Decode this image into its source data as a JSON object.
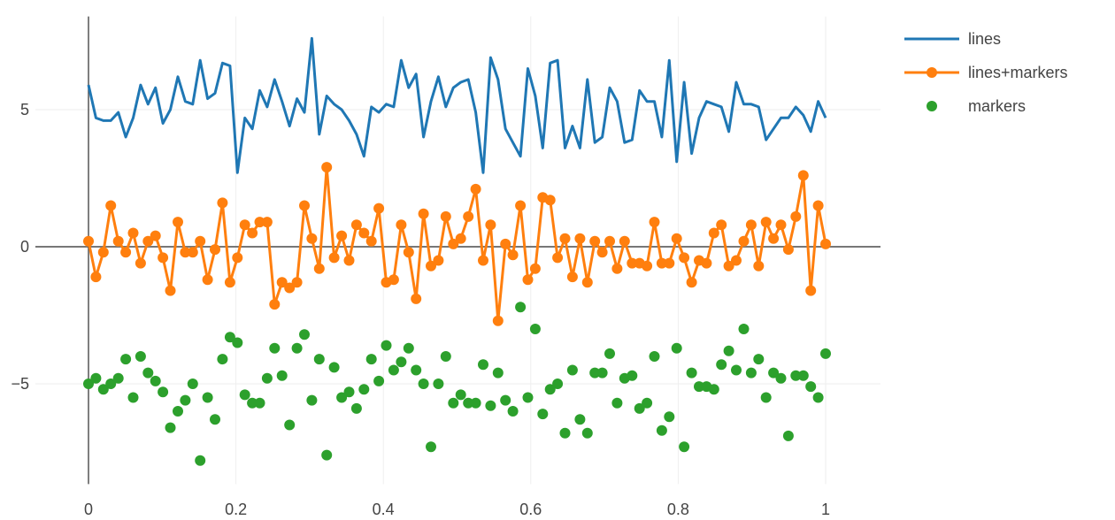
{
  "chart_data": {
    "type": "scatter",
    "title": "",
    "xlabel": "",
    "ylabel": "",
    "xlim": [
      0,
      1
    ],
    "ylim": [
      -8.4,
      8.4
    ],
    "grid": true,
    "legend_position": "top-right",
    "x_ticks": [
      0,
      0.2,
      0.4,
      0.6,
      0.8,
      1
    ],
    "x_tick_labels": [
      "0",
      "0.2",
      "0.4",
      "0.6",
      "0.8",
      "1"
    ],
    "y_ticks": [
      -5,
      0,
      5
    ],
    "y_tick_labels": [
      "−5",
      "0",
      "5"
    ],
    "x": [
      0,
      0.0101,
      0.0202,
      0.0303,
      0.0404,
      0.0505,
      0.0606,
      0.0707,
      0.0808,
      0.0909,
      0.101,
      0.1111,
      0.1212,
      0.1313,
      0.1414,
      0.1515,
      0.1616,
      0.1717,
      0.1818,
      0.1919,
      0.202,
      0.2121,
      0.2222,
      0.2323,
      0.2424,
      0.2525,
      0.2626,
      0.2727,
      0.2828,
      0.2929,
      0.303,
      0.3131,
      0.3232,
      0.3333,
      0.3434,
      0.3535,
      0.3636,
      0.3737,
      0.3838,
      0.3939,
      0.404,
      0.4141,
      0.4242,
      0.4343,
      0.4444,
      0.4545,
      0.4646,
      0.4747,
      0.4848,
      0.4949,
      0.5051,
      0.5152,
      0.5253,
      0.5354,
      0.5455,
      0.5556,
      0.5657,
      0.5758,
      0.5859,
      0.596,
      0.6061,
      0.6162,
      0.6263,
      0.6364,
      0.6465,
      0.6566,
      0.6667,
      0.6768,
      0.6869,
      0.697,
      0.7071,
      0.7172,
      0.7273,
      0.7374,
      0.7475,
      0.7576,
      0.7677,
      0.7778,
      0.7879,
      0.798,
      0.8081,
      0.8182,
      0.8283,
      0.8384,
      0.8485,
      0.8586,
      0.8687,
      0.8788,
      0.8889,
      0.899,
      0.9091,
      0.9192,
      0.9293,
      0.9394,
      0.9495,
      0.9596,
      0.9697,
      0.9798,
      0.9899,
      1
    ],
    "series": [
      {
        "name": "lines",
        "mode": "lines",
        "color": "#1f77b4",
        "values": [
          5.9,
          4.7,
          4.6,
          4.6,
          4.9,
          4.0,
          4.7,
          5.9,
          5.2,
          5.8,
          4.5,
          5.0,
          6.2,
          5.3,
          5.2,
          6.8,
          5.4,
          5.6,
          6.7,
          6.6,
          2.7,
          4.7,
          4.3,
          5.7,
          5.1,
          6.1,
          5.3,
          4.4,
          5.4,
          4.9,
          7.6,
          4.1,
          5.5,
          5.2,
          5.0,
          4.6,
          4.1,
          3.3,
          5.1,
          4.9,
          5.2,
          5.1,
          6.8,
          5.8,
          6.3,
          4.0,
          5.3,
          6.2,
          5.1,
          5.8,
          6.0,
          6.1,
          4.9,
          2.7,
          6.9,
          6.1,
          4.3,
          3.8,
          3.3,
          6.5,
          5.5,
          3.6,
          6.7,
          6.8,
          3.6,
          4.4,
          3.6,
          6.1,
          3.8,
          4.0,
          5.8,
          5.3,
          3.8,
          3.9,
          5.7,
          5.3,
          5.3,
          4.0,
          6.8,
          3.1,
          6.0,
          3.4,
          4.7,
          5.3,
          5.2,
          5.1,
          4.2,
          6.0,
          5.2,
          5.2,
          5.1,
          3.9,
          4.3,
          4.7,
          4.7,
          5.1,
          4.8,
          4.2,
          5.3,
          4.7
        ]
      },
      {
        "name": "lines+markers",
        "mode": "lines+markers",
        "color": "#ff7f0e",
        "values": [
          0.2,
          -1.1,
          -0.2,
          1.5,
          0.2,
          -0.2,
          0.5,
          -0.6,
          0.2,
          0.4,
          -0.4,
          -1.6,
          0.9,
          -0.2,
          -0.2,
          0.2,
          -1.2,
          -0.1,
          1.6,
          -1.3,
          -0.4,
          0.8,
          0.5,
          0.9,
          0.9,
          -2.1,
          -1.3,
          -1.5,
          -1.3,
          1.5,
          0.3,
          -0.8,
          2.9,
          -0.4,
          0.4,
          -0.5,
          0.8,
          0.5,
          0.2,
          1.4,
          -1.3,
          -1.2,
          0.8,
          -0.2,
          -1.9,
          1.2,
          -0.7,
          -0.5,
          1.1,
          0.1,
          0.3,
          1.1,
          2.1,
          -0.5,
          0.8,
          -2.7,
          0.1,
          -0.3,
          1.5,
          -1.2,
          -0.8,
          1.8,
          1.7,
          -0.4,
          0.3,
          -1.1,
          0.3,
          -1.3,
          0.2,
          -0.2,
          0.2,
          -0.8,
          0.2,
          -0.6,
          -0.6,
          -0.7,
          0.9,
          -0.6,
          -0.6,
          0.3,
          -0.4,
          -1.3,
          -0.5,
          -0.6,
          0.5,
          0.8,
          -0.7,
          -0.5,
          0.2,
          0.8,
          -0.7,
          0.9,
          0.3,
          0.8,
          -0.1,
          1.1,
          2.6,
          -1.6,
          1.5,
          0.1
        ]
      },
      {
        "name": "markers",
        "mode": "markers",
        "color": "#2ca02c",
        "values": [
          -5.0,
          -4.8,
          -5.2,
          -5.0,
          -4.8,
          -4.1,
          -5.5,
          -4.0,
          -4.6,
          -4.9,
          -5.3,
          -6.6,
          -6.0,
          -5.6,
          -5.0,
          -7.8,
          -5.5,
          -6.3,
          -4.1,
          -3.3,
          -3.5,
          -5.4,
          -5.7,
          -5.7,
          -4.8,
          -3.7,
          -4.7,
          -6.5,
          -3.7,
          -3.2,
          -5.6,
          -4.1,
          -7.6,
          -4.4,
          -5.5,
          -5.3,
          -5.9,
          -5.2,
          -4.1,
          -4.9,
          -3.6,
          -4.5,
          -4.2,
          -3.7,
          -4.5,
          -5.0,
          -7.3,
          -5.0,
          -4.0,
          -5.7,
          -5.4,
          -5.7,
          -5.7,
          -4.3,
          -5.8,
          -4.6,
          -5.6,
          -6.0,
          -2.2,
          -5.5,
          -3.0,
          -6.1,
          -5.2,
          -5.0,
          -6.8,
          -4.5,
          -6.3,
          -6.8,
          -4.6,
          -4.6,
          -3.9,
          -5.7,
          -4.8,
          -4.7,
          -5.9,
          -5.7,
          -4.0,
          -6.7,
          -6.2,
          -3.7,
          -7.3,
          -4.6,
          -5.1,
          -5.1,
          -5.2,
          -4.3,
          -3.8,
          -4.5,
          -3.0,
          -4.6,
          -4.1,
          -5.5,
          -4.6,
          -4.8,
          -6.9,
          -4.7,
          -4.7,
          -5.1,
          -5.5,
          -3.9
        ]
      }
    ]
  }
}
